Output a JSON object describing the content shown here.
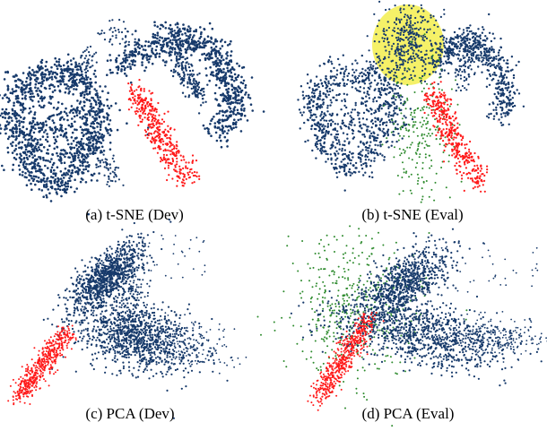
{
  "colors": {
    "class_a": "#173a6b",
    "class_b": "#ff1a1a",
    "class_c": "#2e8b2e",
    "highlight": "#f4f058"
  },
  "chart_data": [
    {
      "type": "scatter",
      "panel": "a",
      "title": "(a) t-SNE (Dev)",
      "series": [
        {
          "color": "class_a",
          "clusters": [
            "left-blob",
            "right-arc"
          ]
        },
        {
          "color": "class_b",
          "clusters": [
            "diagonal-stripe"
          ]
        }
      ],
      "grid": false,
      "axes": false
    },
    {
      "type": "scatter",
      "panel": "b",
      "title": "(b) t-SNE (Eval)",
      "series": [
        {
          "color": "class_a",
          "clusters": [
            "left-blob",
            "right-arc",
            "top-cluster"
          ]
        },
        {
          "color": "class_b",
          "clusters": [
            "diagonal-stripe"
          ]
        },
        {
          "color": "class_c",
          "clusters": [
            "center-scatter"
          ]
        }
      ],
      "highlight": "top-cluster",
      "grid": false,
      "axes": false
    },
    {
      "type": "scatter",
      "panel": "c",
      "title": "(c) PCA (Dev)",
      "series": [
        {
          "color": "class_a",
          "clusters": [
            "upper-lobe",
            "lower-right-lobe"
          ]
        },
        {
          "color": "class_b",
          "clusters": [
            "lower-left-stripe"
          ]
        }
      ],
      "grid": false,
      "axes": false
    },
    {
      "type": "scatter",
      "panel": "d",
      "title": "(d) PCA (Eval)",
      "series": [
        {
          "color": "class_a",
          "clusters": [
            "upper-lobe",
            "lower-right-lobe"
          ]
        },
        {
          "color": "class_b",
          "clusters": [
            "lower-left-stripe"
          ]
        },
        {
          "color": "class_c",
          "clusters": [
            "central-spread"
          ]
        }
      ],
      "grid": false,
      "axes": false
    }
  ]
}
